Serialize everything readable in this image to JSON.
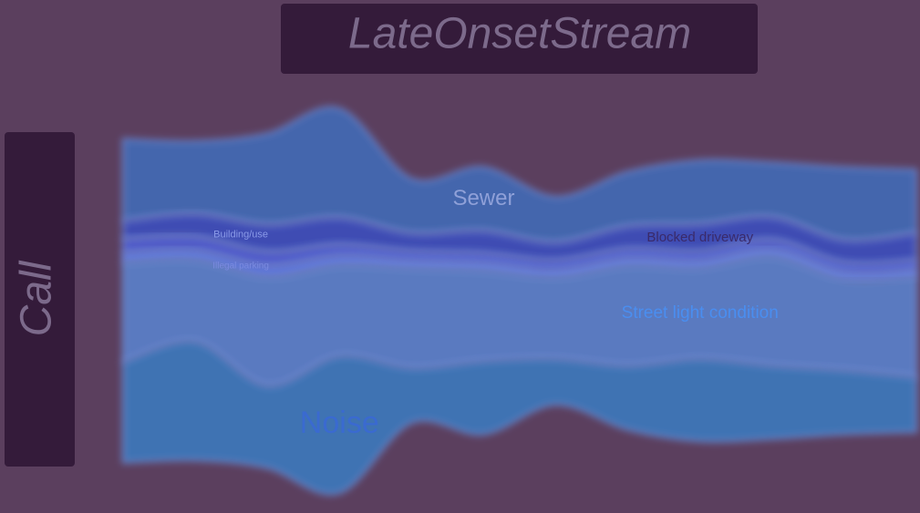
{
  "chart_data": {
    "type": "streamgraph",
    "title": "LateOnsetStream",
    "y_label": "Call",
    "x": [
      0,
      1,
      2,
      3,
      4,
      5,
      6,
      7,
      8,
      9,
      10,
      11
    ],
    "series": [
      {
        "name": "Sewer",
        "color": "#3f6fc0",
        "values": [
          90,
          80,
          100,
          120,
          60,
          70,
          50,
          60,
          70,
          60,
          80,
          70
        ]
      },
      {
        "name": "Blocked driveway",
        "color": "#3a4fc8",
        "values": [
          20,
          25,
          30,
          30,
          20,
          25,
          20,
          25,
          30,
          25,
          25,
          30
        ]
      },
      {
        "name": "Building/use",
        "color": "#4b5ee0",
        "values": [
          15,
          15,
          15,
          12,
          10,
          10,
          10,
          10,
          10,
          10,
          10,
          10
        ]
      },
      {
        "name": "Illegal parking",
        "color": "#5a7cf0",
        "values": [
          10,
          10,
          12,
          10,
          8,
          8,
          8,
          8,
          8,
          8,
          8,
          8
        ]
      },
      {
        "name": "Street light condition",
        "color": "#5a8ad8",
        "values": [
          110,
          90,
          120,
          100,
          110,
          100,
          90,
          110,
          100,
          120,
          100,
          110
        ]
      },
      {
        "name": "Noise",
        "color": "#3a7fc8",
        "values": [
          110,
          130,
          90,
          150,
          60,
          80,
          50,
          70,
          90,
          80,
          70,
          60
        ]
      }
    ]
  }
}
